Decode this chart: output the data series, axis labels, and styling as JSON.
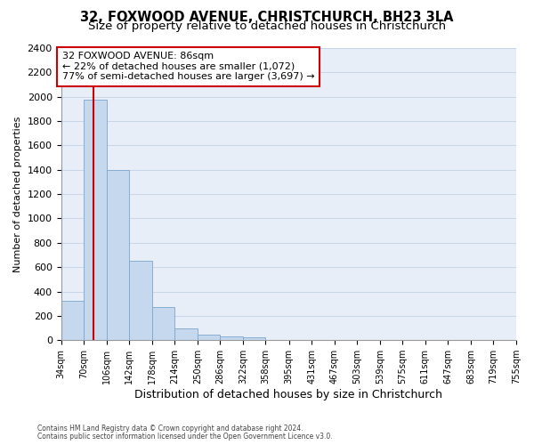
{
  "title": "32, FOXWOOD AVENUE, CHRISTCHURCH, BH23 3LA",
  "subtitle": "Size of property relative to detached houses in Christchurch",
  "xlabel": "Distribution of detached houses by size in Christchurch",
  "ylabel": "Number of detached properties",
  "footnote1": "Contains HM Land Registry data © Crown copyright and database right 2024.",
  "footnote2": "Contains public sector information licensed under the Open Government Licence v3.0.",
  "bar_edges": [
    34,
    70,
    106,
    142,
    178,
    214,
    250,
    286,
    322,
    358,
    395,
    431,
    467,
    503,
    539,
    575,
    611,
    647,
    683,
    719,
    755
  ],
  "bar_heights": [
    325,
    1975,
    1400,
    650,
    275,
    100,
    45,
    30,
    20,
    0,
    0,
    0,
    0,
    0,
    0,
    0,
    0,
    0,
    0,
    0
  ],
  "bar_color": "#c5d8ee",
  "bar_edge_color": "#7ba7cc",
  "property_line_x": 86,
  "property_line_color": "#cc0000",
  "annotation_line1": "32 FOXWOOD AVENUE: 86sqm",
  "annotation_line2": "← 22% of detached houses are smaller (1,072)",
  "annotation_line3": "77% of semi-detached houses are larger (3,697) →",
  "annotation_box_color": "#ffffff",
  "annotation_box_edge": "#cc0000",
  "ylim": [
    0,
    2400
  ],
  "yticks": [
    0,
    200,
    400,
    600,
    800,
    1000,
    1200,
    1400,
    1600,
    1800,
    2000,
    2200,
    2400
  ],
  "xtick_labels": [
    "34sqm",
    "70sqm",
    "106sqm",
    "142sqm",
    "178sqm",
    "214sqm",
    "250sqm",
    "286sqm",
    "322sqm",
    "358sqm",
    "395sqm",
    "431sqm",
    "467sqm",
    "503sqm",
    "539sqm",
    "575sqm",
    "611sqm",
    "647sqm",
    "683sqm",
    "719sqm",
    "755sqm"
  ],
  "grid_color": "#c8d4e8",
  "bg_color": "#e8eef8",
  "title_fontsize": 10.5,
  "subtitle_fontsize": 9.5,
  "annot_fontsize": 8.0,
  "ylabel_fontsize": 8,
  "xlabel_fontsize": 9,
  "ytick_fontsize": 8,
  "xtick_fontsize": 7
}
